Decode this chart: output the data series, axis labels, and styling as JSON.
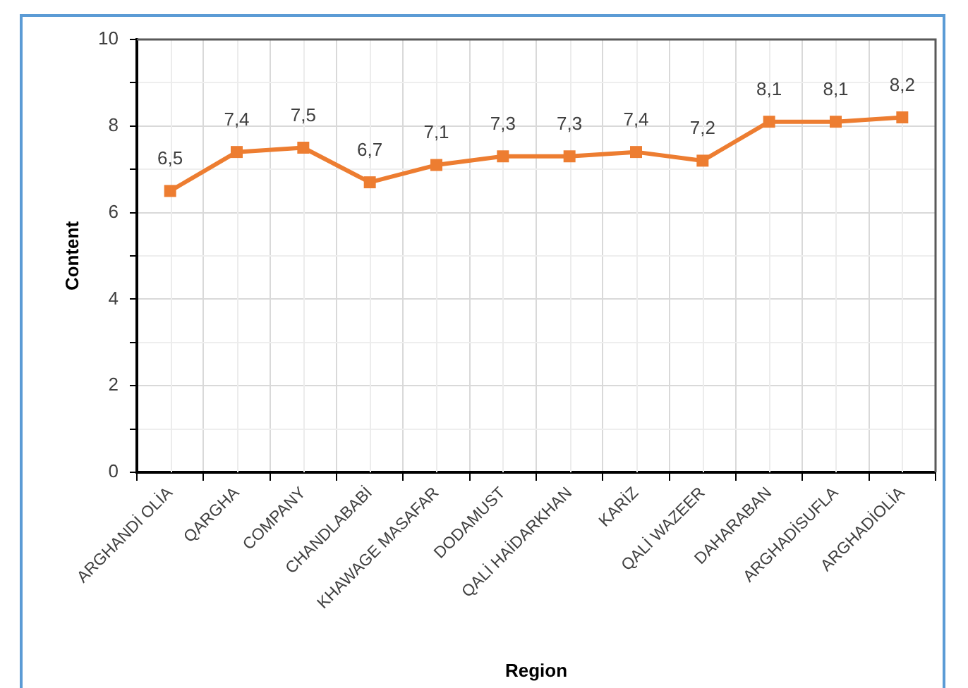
{
  "chart_data": {
    "type": "line",
    "xlabel": "Region",
    "ylabel": "Content",
    "categories": [
      "ARGHANDİ OLİA",
      "QARGHA",
      "COMPANY",
      "CHANDLABABİ",
      "KHAWAGE MASAFAR",
      "DODAMUST",
      "QALİ HAİDARKHAN",
      "KARİZ",
      "QALİ WAZEER",
      "DAHARABAN",
      "ARGHADİSUFLA",
      "ARGHADİOLİA"
    ],
    "series": [
      {
        "color": "#ed7d31",
        "values": [
          6.5,
          7.4,
          7.5,
          6.7,
          7.1,
          7.3,
          7.3,
          7.4,
          7.2,
          8.1,
          8.1,
          8.2
        ],
        "value_labels": [
          "6,5",
          "7,4",
          "7,5",
          "6,7",
          "7,1",
          "7,3",
          "7,3",
          "7,4",
          "7,2",
          "8,1",
          "8,1",
          "8,2"
        ]
      }
    ],
    "ylim": [
      0,
      10
    ],
    "yticks": [
      0,
      {
        "value": 1,
        "label": null
      },
      2,
      {
        "value": 3,
        "label": null
      },
      4,
      {
        "value": 5,
        "label": null
      },
      6,
      {
        "value": 7,
        "label": null
      },
      8,
      {
        "value": 9,
        "label": null
      },
      10
    ],
    "grid": true,
    "marker": "square",
    "line_style": "solid"
  }
}
